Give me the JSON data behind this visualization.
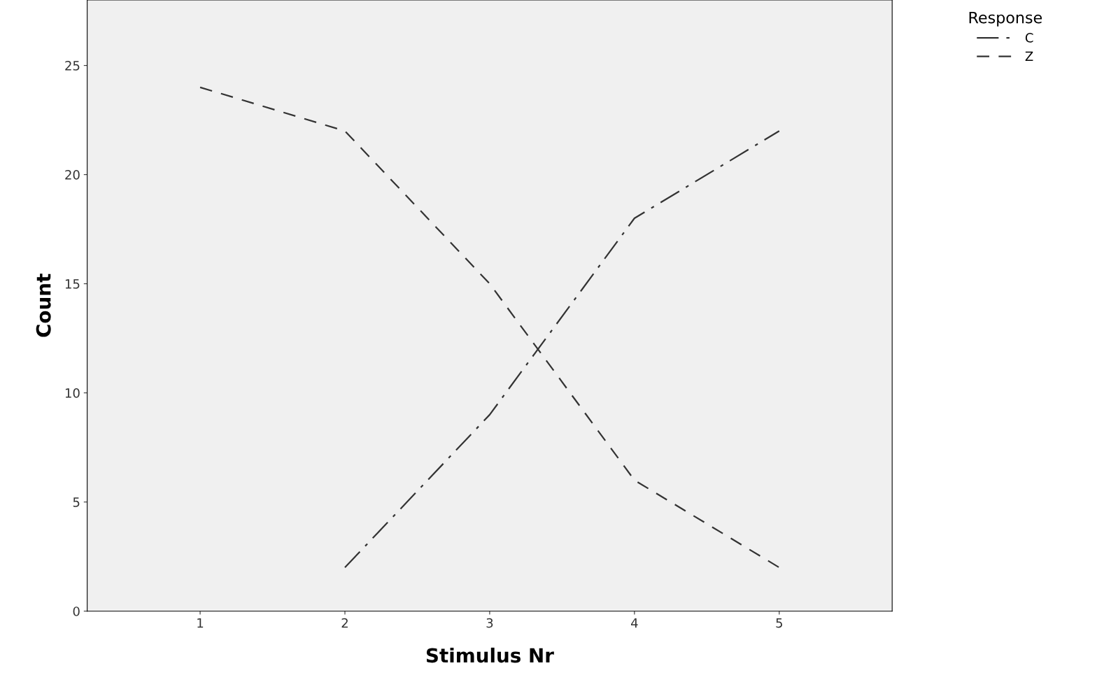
{
  "chart_data": {
    "type": "line",
    "xlabel": "Stimulus Nr",
    "ylabel": "Count",
    "legend_title": "Response",
    "x": [
      1,
      2,
      3,
      4,
      5
    ],
    "series": [
      {
        "name": "C",
        "color": "#333333",
        "line_style": "dashdot",
        "values": [
          null,
          2,
          9,
          18,
          22
        ]
      },
      {
        "name": "Z",
        "color": "#333333",
        "line_style": "dashed",
        "values": [
          24,
          22,
          15,
          6,
          2
        ]
      }
    ],
    "xlim": [
      0.22,
      5.78
    ],
    "ylim": [
      0,
      28
    ],
    "xticks": [
      1,
      2,
      3,
      4,
      5
    ],
    "yticks": [
      0,
      5,
      10,
      15,
      20,
      25
    ],
    "grid": false,
    "legend": "top right",
    "marker": "none"
  }
}
